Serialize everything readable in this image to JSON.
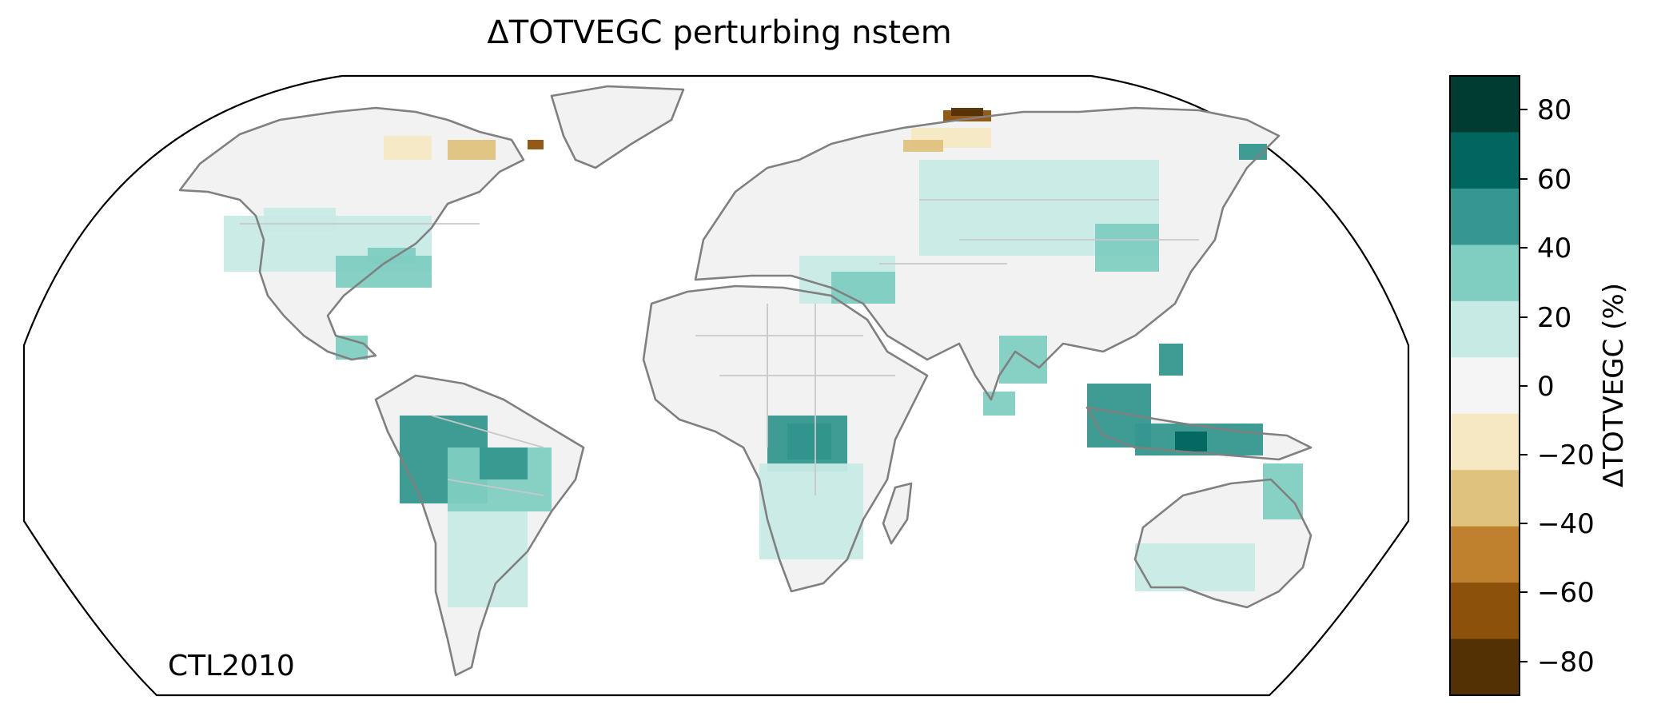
{
  "title": "ΔTOTVEGC perturbing nstem",
  "annotation": "CTL2010",
  "colorbar": {
    "label": "ΔTOTVEGC (%)",
    "ticks": [
      "80",
      "60",
      "40",
      "20",
      "0",
      "−20",
      "−40",
      "−60",
      "−80"
    ],
    "bins": [
      {
        "range": [
          70,
          90
        ],
        "color": "#003c30"
      },
      {
        "range": [
          50,
          70
        ],
        "color": "#01665e"
      },
      {
        "range": [
          30,
          50
        ],
        "color": "#35978f"
      },
      {
        "range": [
          10,
          30
        ],
        "color": "#80cdc1"
      },
      {
        "range": [
          -10,
          10
        ],
        "color": "#c7eae5"
      },
      {
        "range": [
          -10,
          10
        ],
        "color": "#f5f5f5"
      },
      {
        "range": [
          -30,
          -10
        ],
        "color": "#f6e8c3"
      },
      {
        "range": [
          -50,
          -30
        ],
        "color": "#dfc27d"
      },
      {
        "range": [
          -70,
          -50
        ],
        "color": "#bf812d"
      },
      {
        "range": [
          -90,
          -70
        ],
        "color": "#8c510a"
      }
    ],
    "bottom_color": "#543005"
  },
  "map": {
    "projection": "Robinson",
    "coastline_color": "#808080",
    "border_color": "#c8c8c8",
    "land_color": "#f2f2f2"
  }
}
